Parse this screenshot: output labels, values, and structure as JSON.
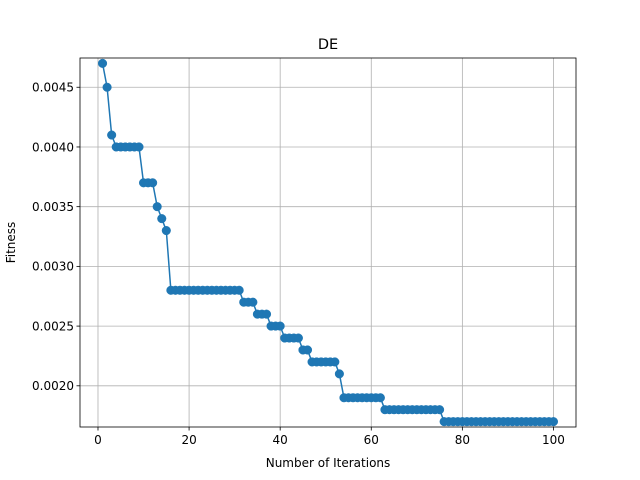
{
  "chart_data": {
    "type": "line",
    "title": "DE",
    "xlabel": "Number of Iterations",
    "ylabel": "Fitness",
    "xlim": [
      -3.95,
      104.95
    ],
    "ylim": [
      0.001655,
      0.004745
    ],
    "xticks": [
      0,
      20,
      40,
      60,
      80,
      100
    ],
    "yticks": [
      0.002,
      0.0025,
      0.003,
      0.0035,
      0.004,
      0.0045
    ],
    "ytick_labels": [
      "0.0020",
      "0.0025",
      "0.0030",
      "0.0035",
      "0.0040",
      "0.0045"
    ],
    "grid": true,
    "line_color": "#1f77b4",
    "marker": "circle",
    "series": [
      {
        "x": [
          1,
          2,
          3,
          4,
          5,
          6,
          7,
          8,
          9,
          10,
          11,
          12,
          13,
          14,
          15,
          16,
          17,
          18,
          19,
          20,
          21,
          22,
          23,
          24,
          25,
          26,
          27,
          28,
          29,
          30,
          31,
          32,
          33,
          34,
          35,
          36,
          37,
          38,
          39,
          40,
          41,
          42,
          43,
          44,
          45,
          46,
          47,
          48,
          49,
          50,
          51,
          52,
          53,
          54,
          55,
          56,
          57,
          58,
          59,
          60,
          61,
          62,
          63,
          64,
          65,
          66,
          67,
          68,
          69,
          70,
          71,
          72,
          73,
          74,
          75,
          76,
          77,
          78,
          79,
          80,
          81,
          82,
          83,
          84,
          85,
          86,
          87,
          88,
          89,
          90,
          91,
          92,
          93,
          94,
          95,
          96,
          97,
          98,
          99,
          100
        ],
        "values": [
          0.0047,
          0.0045,
          0.0041,
          0.004,
          0.004,
          0.004,
          0.004,
          0.004,
          0.004,
          0.0037,
          0.0037,
          0.0037,
          0.0035,
          0.0034,
          0.0033,
          0.0028,
          0.0028,
          0.0028,
          0.0028,
          0.0028,
          0.0028,
          0.0028,
          0.0028,
          0.0028,
          0.0028,
          0.0028,
          0.0028,
          0.0028,
          0.0028,
          0.0028,
          0.0028,
          0.0027,
          0.0027,
          0.0027,
          0.0026,
          0.0026,
          0.0026,
          0.0025,
          0.0025,
          0.0025,
          0.0024,
          0.0024,
          0.0024,
          0.0024,
          0.0023,
          0.0023,
          0.0022,
          0.0022,
          0.0022,
          0.0022,
          0.0022,
          0.0022,
          0.0021,
          0.0019,
          0.0019,
          0.0019,
          0.0019,
          0.0019,
          0.0019,
          0.0019,
          0.0019,
          0.0019,
          0.0018,
          0.0018,
          0.0018,
          0.0018,
          0.0018,
          0.0018,
          0.0018,
          0.0018,
          0.0018,
          0.0018,
          0.0018,
          0.0018,
          0.0018,
          0.0017,
          0.0017,
          0.0017,
          0.0017,
          0.0017,
          0.0017,
          0.0017,
          0.0017,
          0.0017,
          0.0017,
          0.0017,
          0.0017,
          0.0017,
          0.0017,
          0.0017,
          0.0017,
          0.0017,
          0.0017,
          0.0017,
          0.0017,
          0.0017,
          0.0017,
          0.0017,
          0.0017,
          0.0017
        ]
      }
    ]
  }
}
